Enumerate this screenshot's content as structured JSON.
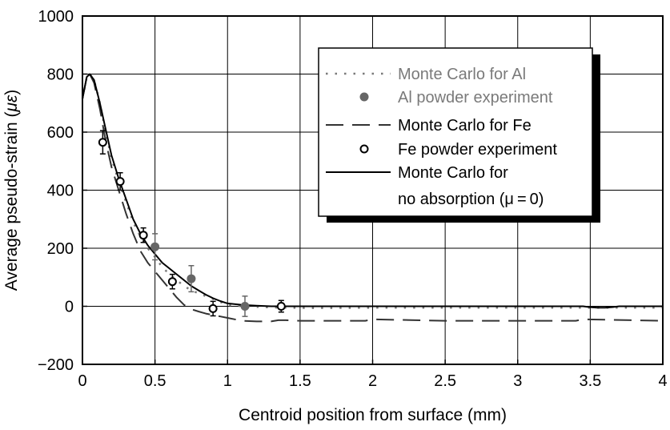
{
  "chart_data": {
    "type": "line",
    "title": "",
    "xlabel": "Centroid position from surface (mm)",
    "ylabel_prefix": "Average pseudo-strain (",
    "ylabel_unit": "με",
    "ylabel_suffix": ")",
    "xlim": [
      0,
      4
    ],
    "ylim": [
      -200,
      1000
    ],
    "x_ticks": [
      0,
      0.5,
      1,
      1.5,
      2,
      2.5,
      3,
      3.5,
      4
    ],
    "x_tick_labels": [
      "0",
      "0.5",
      "1",
      "1.5",
      "2",
      "2.5",
      "3",
      "3.5",
      "4"
    ],
    "y_ticks": [
      -200,
      0,
      200,
      400,
      600,
      800,
      1000
    ],
    "y_tick_labels": [
      "−200",
      "0",
      "200",
      "400",
      "600",
      "800",
      "1000"
    ],
    "grid": true,
    "legend_position": "top-right",
    "series": [
      {
        "name": "Monte Carlo for Al",
        "kind": "line",
        "style": "dotted",
        "color": "#7a7a7a",
        "x": [
          0.0,
          0.03,
          0.05,
          0.08,
          0.12,
          0.16,
          0.2,
          0.25,
          0.3,
          0.35,
          0.4,
          0.45,
          0.5,
          0.55,
          0.6,
          0.65,
          0.7,
          0.75,
          0.8,
          0.85,
          0.9,
          0.95,
          1.0,
          1.1,
          1.2,
          1.3,
          1.4,
          1.6,
          2.0,
          2.5,
          3.0,
          3.5,
          4.0
        ],
        "y": [
          715,
          790,
          800,
          780,
          700,
          600,
          510,
          430,
          360,
          290,
          240,
          200,
          170,
          135,
          110,
          90,
          70,
          55,
          45,
          35,
          25,
          15,
          5,
          0,
          -2,
          -4,
          -5,
          -6,
          -5,
          -5,
          -5,
          -5,
          -5
        ]
      },
      {
        "name": "Al powder experiment",
        "kind": "points",
        "marker": "filled-circle",
        "color": "#666666",
        "x": [
          0.5,
          0.75,
          1.12
        ],
        "y": [
          205,
          95,
          0
        ],
        "err": [
          45,
          45,
          35
        ]
      },
      {
        "name": "Monte Carlo for Fe",
        "kind": "line",
        "style": "dashed",
        "color": "#333333",
        "x": [
          0.0,
          0.03,
          0.05,
          0.08,
          0.12,
          0.16,
          0.2,
          0.25,
          0.3,
          0.35,
          0.4,
          0.45,
          0.5,
          0.55,
          0.6,
          0.65,
          0.7,
          0.75,
          0.8,
          0.85,
          0.9,
          0.95,
          1.0,
          1.05,
          1.1,
          1.2,
          1.3,
          1.35,
          1.4,
          1.5,
          1.8,
          1.95,
          2.0,
          2.5,
          3.0,
          3.4,
          3.45,
          4.0
        ],
        "y": [
          715,
          790,
          800,
          770,
          680,
          570,
          480,
          400,
          320,
          250,
          190,
          150,
          120,
          90,
          60,
          30,
          5,
          -10,
          -18,
          -25,
          -30,
          -35,
          -40,
          -45,
          -50,
          -52,
          -52,
          -48,
          -48,
          -50,
          -50,
          -50,
          -45,
          -50,
          -50,
          -50,
          -45,
          -50
        ]
      },
      {
        "name": "Fe powder experiment",
        "kind": "points",
        "marker": "open-circle",
        "color": "#000000",
        "x": [
          0.14,
          0.26,
          0.42,
          0.62,
          0.9,
          1.37
        ],
        "y": [
          565,
          430,
          245,
          85,
          -8,
          0
        ],
        "err": [
          40,
          30,
          25,
          25,
          25,
          20
        ]
      },
      {
        "name_line1": "Monte Carlo for",
        "name_line2": "no absorption (μ = 0)",
        "kind": "line",
        "style": "solid",
        "color": "#000000",
        "x": [
          0.0,
          0.03,
          0.05,
          0.08,
          0.12,
          0.16,
          0.2,
          0.25,
          0.3,
          0.35,
          0.4,
          0.45,
          0.5,
          0.55,
          0.6,
          0.65,
          0.7,
          0.75,
          0.8,
          0.85,
          0.9,
          0.95,
          1.0,
          1.1,
          1.2,
          1.3,
          1.4,
          1.5,
          2.0,
          2.5,
          3.0,
          3.45,
          3.5,
          3.55,
          3.6,
          3.65,
          3.7,
          4.0
        ],
        "y": [
          715,
          790,
          800,
          780,
          700,
          610,
          520,
          440,
          370,
          300,
          250,
          210,
          180,
          150,
          130,
          110,
          90,
          70,
          55,
          40,
          28,
          18,
          10,
          5,
          2,
          0,
          0,
          0,
          0,
          0,
          0,
          0,
          -3,
          -5,
          -5,
          -3,
          0,
          0
        ]
      }
    ]
  }
}
